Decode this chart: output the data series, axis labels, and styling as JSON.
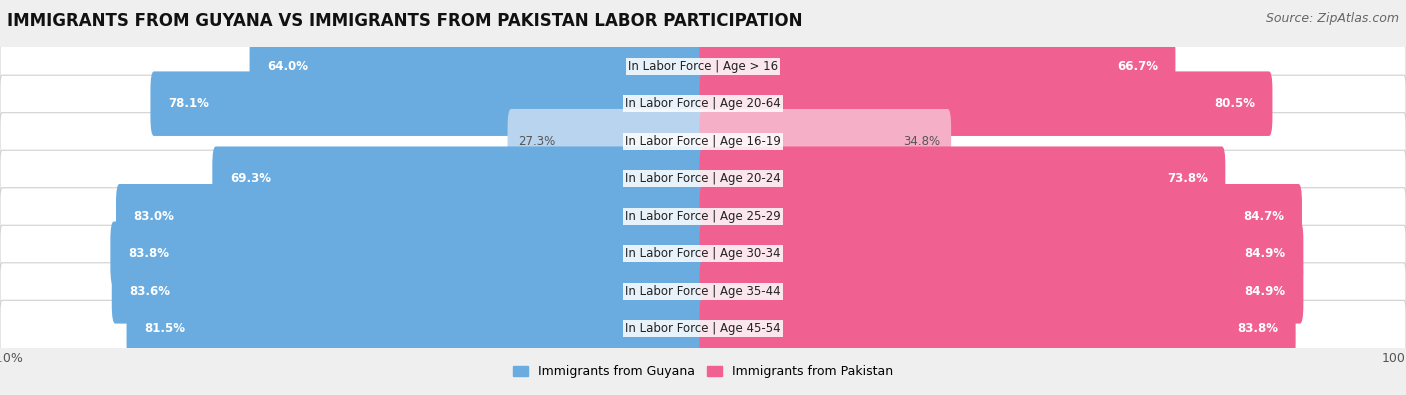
{
  "title": "IMMIGRANTS FROM GUYANA VS IMMIGRANTS FROM PAKISTAN LABOR PARTICIPATION",
  "source": "Source: ZipAtlas.com",
  "categories": [
    "In Labor Force | Age > 16",
    "In Labor Force | Age 20-64",
    "In Labor Force | Age 16-19",
    "In Labor Force | Age 20-24",
    "In Labor Force | Age 25-29",
    "In Labor Force | Age 30-34",
    "In Labor Force | Age 35-44",
    "In Labor Force | Age 45-54"
  ],
  "guyana_values": [
    64.0,
    78.1,
    27.3,
    69.3,
    83.0,
    83.8,
    83.6,
    81.5
  ],
  "pakistan_values": [
    66.7,
    80.5,
    34.8,
    73.8,
    84.7,
    84.9,
    84.9,
    83.8
  ],
  "guyana_color": "#6aace0",
  "guyana_color_light": "#b8d4ee",
  "pakistan_color": "#f06090",
  "pakistan_color_light": "#f5b0c8",
  "row_bg_color": "#ffffff",
  "row_border_color": "#d0d0d0",
  "background_color": "#efefef",
  "legend_guyana": "Immigrants from Guyana",
  "legend_pakistan": "Immigrants from Pakistan",
  "title_fontsize": 12,
  "source_fontsize": 9,
  "label_fontsize": 8.5,
  "value_fontsize": 8.5,
  "axis_fontsize": 9
}
